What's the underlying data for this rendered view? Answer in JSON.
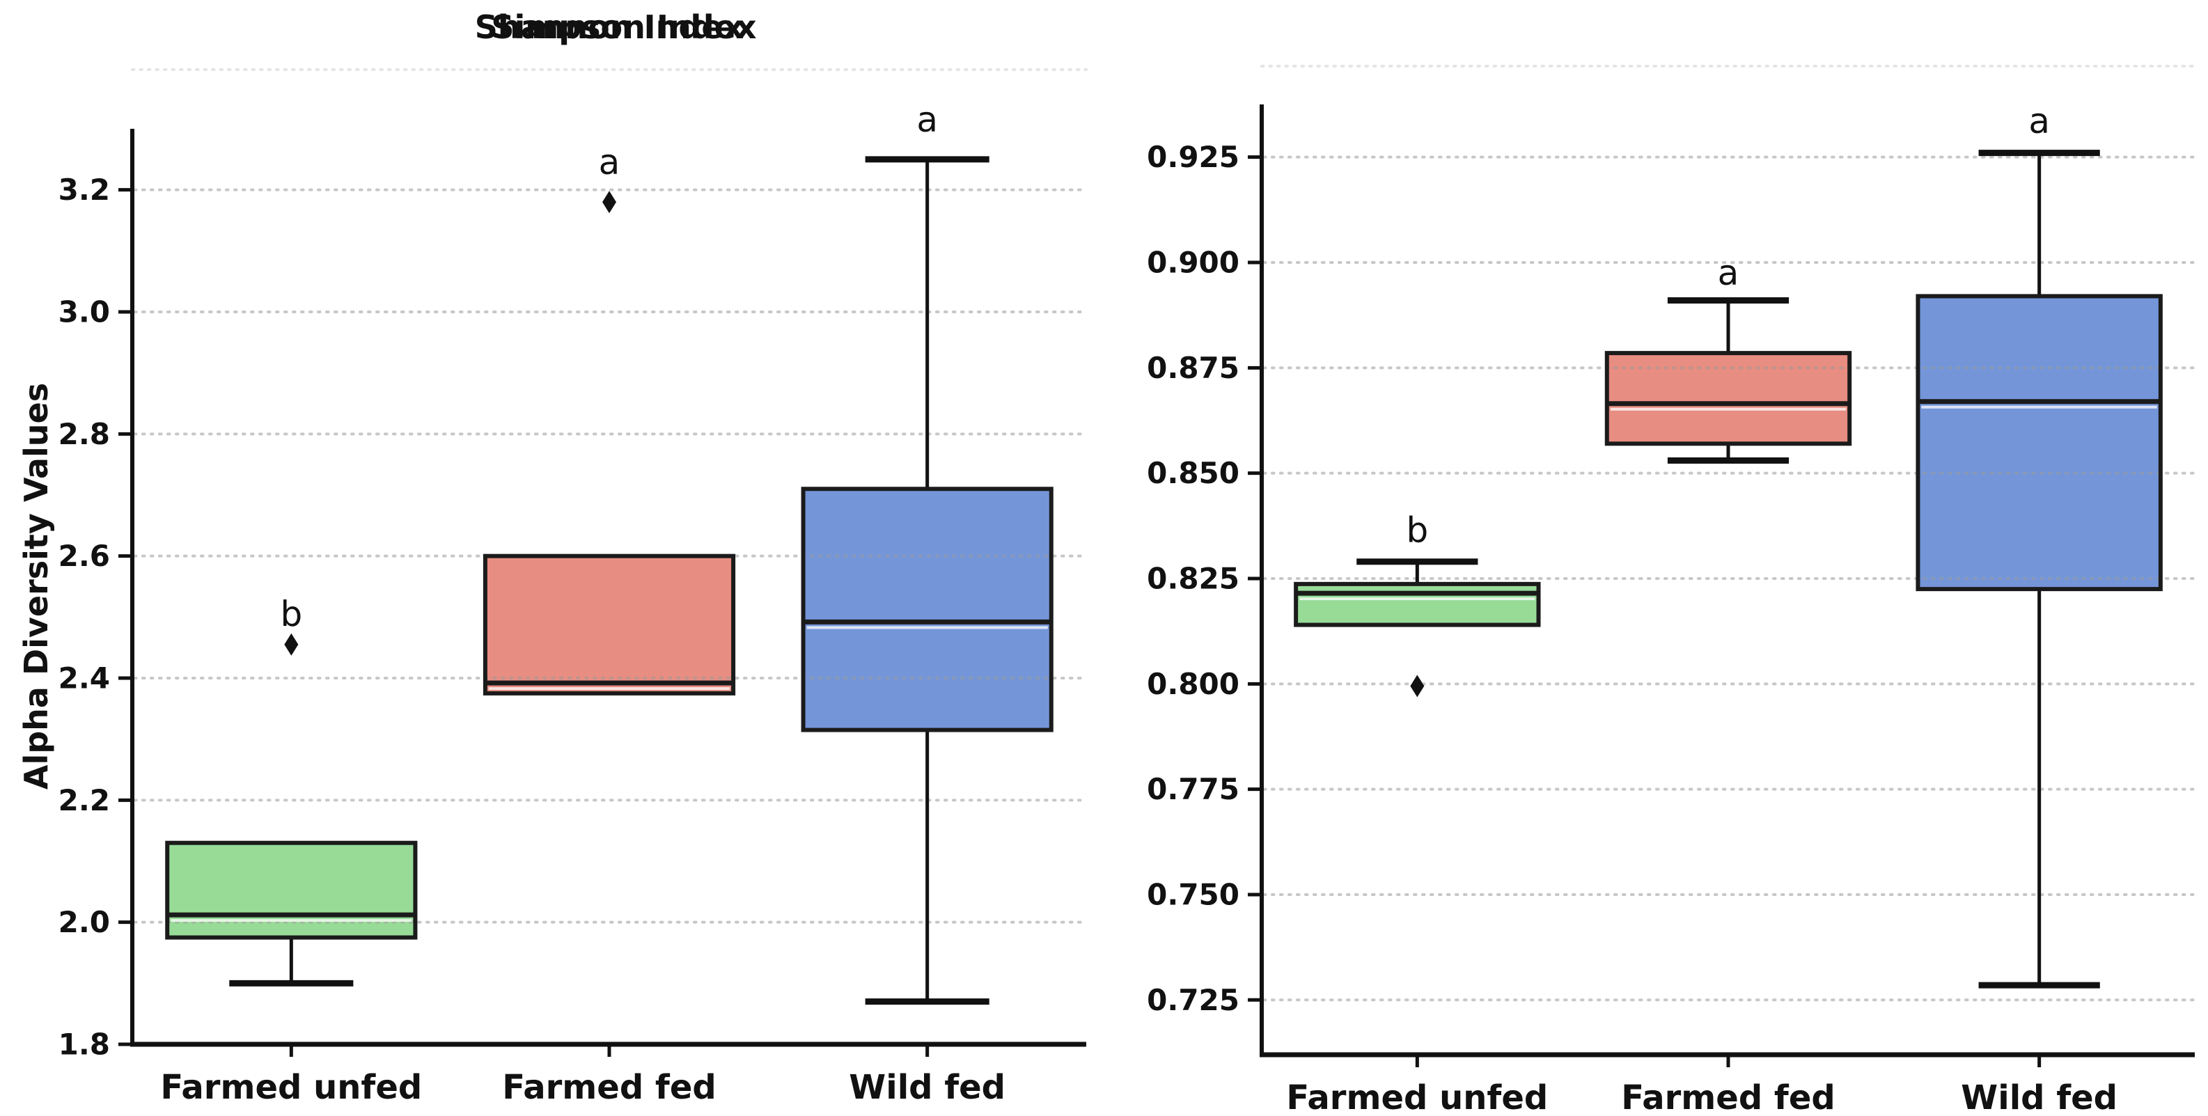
{
  "figure": {
    "background": "#ffffff",
    "text_color": "#111111",
    "grid_color": "#9a9a9a",
    "spine_color": "#111111",
    "box_edge_color": "#1b1b1b",
    "flier_color": "#111111"
  },
  "chart_data": [
    {
      "type": "box",
      "title": "Shannon Index",
      "ylabel": "Alpha Diversity Values",
      "xlabel": "",
      "ylim": [
        1.8,
        3.3
      ],
      "yticks": [
        1.8,
        2.0,
        2.2,
        2.4,
        2.6,
        2.8,
        3.0,
        3.2
      ],
      "ytick_decimals": 1,
      "grid": "horizontal-dotted",
      "legend": "none",
      "categories": [
        "Farmed unfed",
        "Farmed fed",
        "Wild fed"
      ],
      "boxes": [
        {
          "category": "Farmed unfed",
          "color": "#97db97",
          "whislo": 1.9,
          "q1": 1.975,
          "med": 2.012,
          "q3": 2.13,
          "whishi": 2.13,
          "fliers": [
            2.455
          ],
          "sig_letter": "b",
          "sig_letter_y": 2.505
        },
        {
          "category": "Farmed fed",
          "color": "#e88d81",
          "whislo": 2.375,
          "q1": 2.375,
          "med": 2.392,
          "q3": 2.6,
          "whishi": 2.6,
          "fliers": [
            3.18
          ],
          "sig_letter": "a",
          "sig_letter_y": 3.245
        },
        {
          "category": "Wild fed",
          "color": "#7496d9",
          "whislo": 1.87,
          "q1": 2.315,
          "med": 2.492,
          "q3": 2.71,
          "whishi": 3.25,
          "fliers": [],
          "sig_letter": "a",
          "sig_letter_y": 3.315
        }
      ]
    },
    {
      "type": "box",
      "title": "Simpson Index",
      "ylabel": "",
      "xlabel": "",
      "ylim": [
        0.712,
        0.9375
      ],
      "yticks": [
        0.725,
        0.75,
        0.775,
        0.8,
        0.825,
        0.85,
        0.875,
        0.9,
        0.925
      ],
      "ytick_decimals": 3,
      "grid": "horizontal-dotted",
      "legend": "none",
      "categories": [
        "Farmed unfed",
        "Farmed fed",
        "Wild fed"
      ],
      "boxes": [
        {
          "category": "Farmed unfed",
          "color": "#97db97",
          "whislo": 0.814,
          "q1": 0.814,
          "med": 0.8215,
          "q3": 0.8237,
          "whishi": 0.829,
          "fliers": [
            0.7995
          ],
          "sig_letter": "b",
          "sig_letter_y": 0.8365
        },
        {
          "category": "Farmed fed",
          "color": "#e88d81",
          "whislo": 0.853,
          "q1": 0.857,
          "med": 0.8665,
          "q3": 0.8785,
          "whishi": 0.891,
          "fliers": [],
          "sig_letter": "a",
          "sig_letter_y": 0.8975
        },
        {
          "category": "Wild fed",
          "color": "#7496d9",
          "whislo": 0.7285,
          "q1": 0.8225,
          "med": 0.867,
          "q3": 0.892,
          "whishi": 0.926,
          "fliers": [],
          "sig_letter": "a",
          "sig_letter_y": 0.9335
        }
      ]
    }
  ]
}
